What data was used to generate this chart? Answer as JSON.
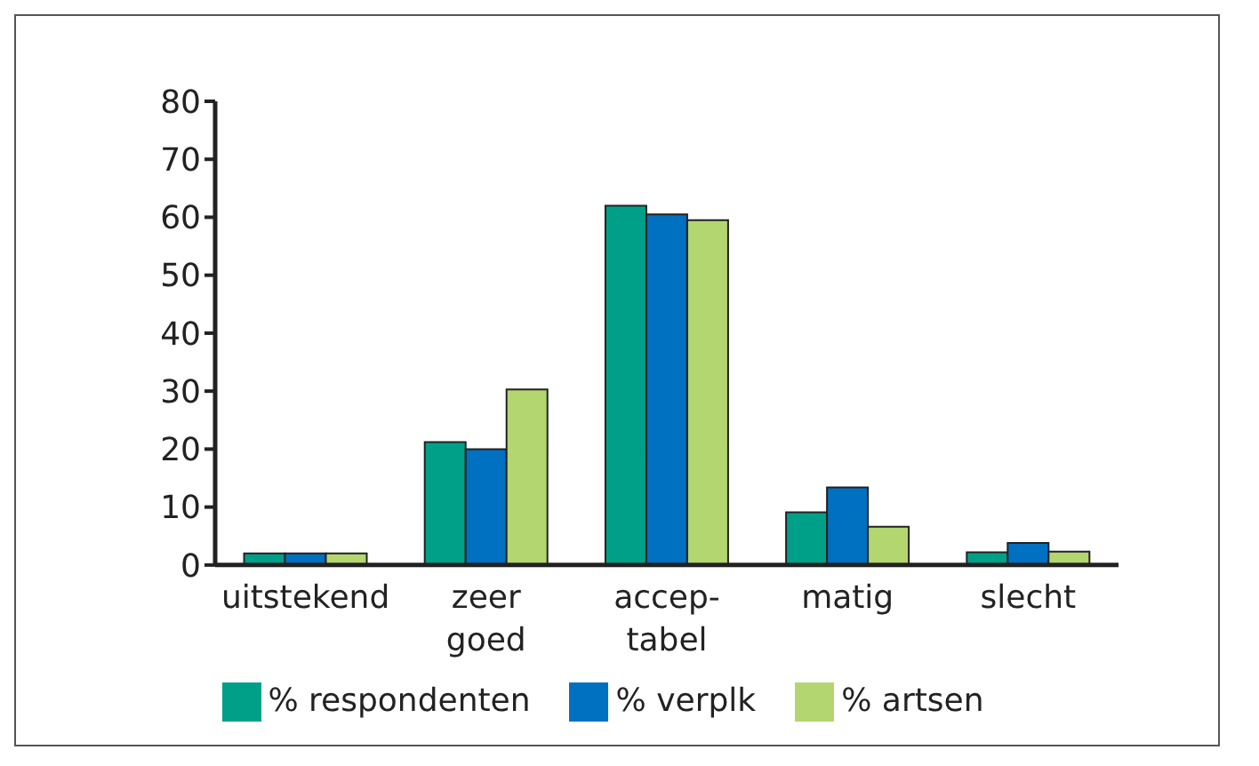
{
  "chart_data": {
    "type": "bar",
    "categories": [
      "uitstekend",
      "zeer\ngoed",
      "accep-\ntabel",
      "matig",
      "slecht"
    ],
    "series": [
      {
        "name": "% respondenten",
        "color": "#00a088",
        "values": [
          2,
          21.2,
          62,
          9.1,
          2.2
        ]
      },
      {
        "name": "% verplk",
        "color": "#0070c0",
        "values": [
          2,
          20,
          60.5,
          13.4,
          3.8
        ]
      },
      {
        "name": "% artsen",
        "color": "#b3d670",
        "values": [
          2,
          30.3,
          59.5,
          6.6,
          2.3
        ]
      }
    ],
    "ylim": [
      0,
      80
    ],
    "yticks": [
      0,
      10,
      20,
      30,
      40,
      50,
      60,
      70,
      80
    ],
    "grid": false,
    "legend": "bottom"
  }
}
